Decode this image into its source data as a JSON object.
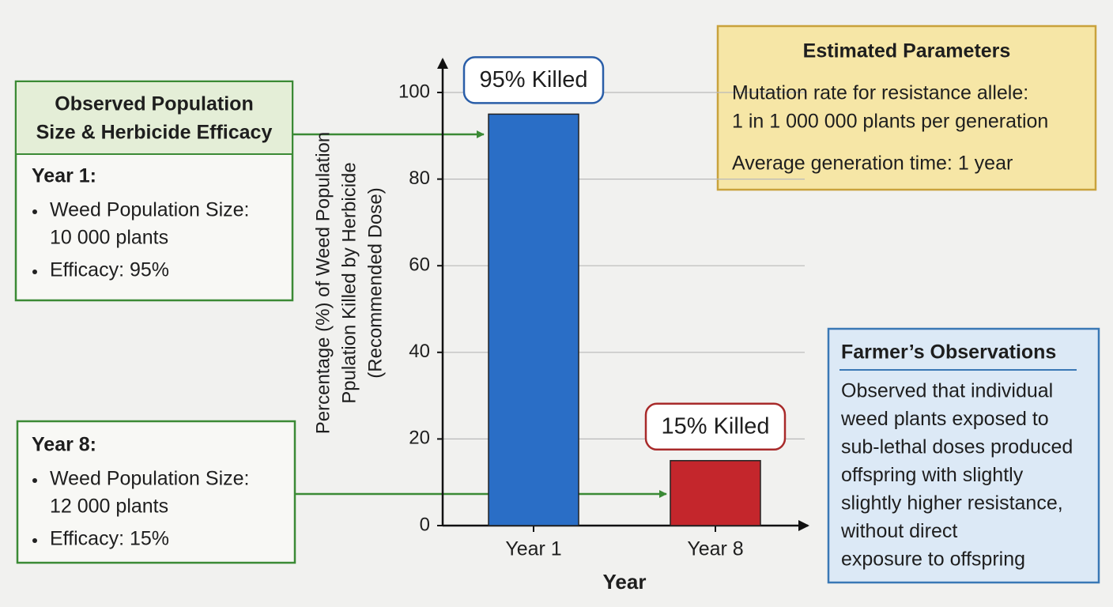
{
  "chart_data": {
    "type": "bar",
    "categories": [
      "Year 1",
      "Year 8"
    ],
    "values": [
      95,
      15
    ],
    "value_labels": [
      "95% Killed",
      "15% Killed"
    ],
    "colors": [
      "#2a6ec6",
      "#c4262c"
    ],
    "ylim": [
      0,
      100
    ],
    "yticks": [
      0,
      20,
      40,
      60,
      80,
      100
    ],
    "grid": true,
    "xlabel": "Year",
    "ylabel": [
      "Percentage (%) of Weed Population",
      "Ppulation Killed by Herbicide",
      "(Recommended Dose)"
    ]
  },
  "observed": {
    "title": [
      "Observed Population",
      "Size & Herbicide Efficacy"
    ],
    "years": [
      {
        "heading": "Year 1:",
        "items": [
          [
            "Weed Population Size:",
            "10 000 plants"
          ],
          [
            "Efficacy: 95%"
          ]
        ]
      },
      {
        "heading": "Year 8:",
        "items": [
          [
            "Weed Population Size:",
            "12 000 plants"
          ],
          [
            "Efficacy: 15%"
          ]
        ]
      }
    ]
  },
  "parameters": {
    "title": "Estimated Parameters",
    "lines": [
      "Mutation rate for resistance allele:",
      "1 in 1 000 000 plants per generation",
      "Average generation time: 1 year"
    ]
  },
  "farmer": {
    "title": "Farmer’s Observations",
    "lines": [
      "Observed that individual",
      "weed plants exposed to",
      "sub-lethal doses produced",
      "offspring with slightly",
      "slightly higher resistance,",
      "without direct",
      "exposure to offspring"
    ]
  }
}
